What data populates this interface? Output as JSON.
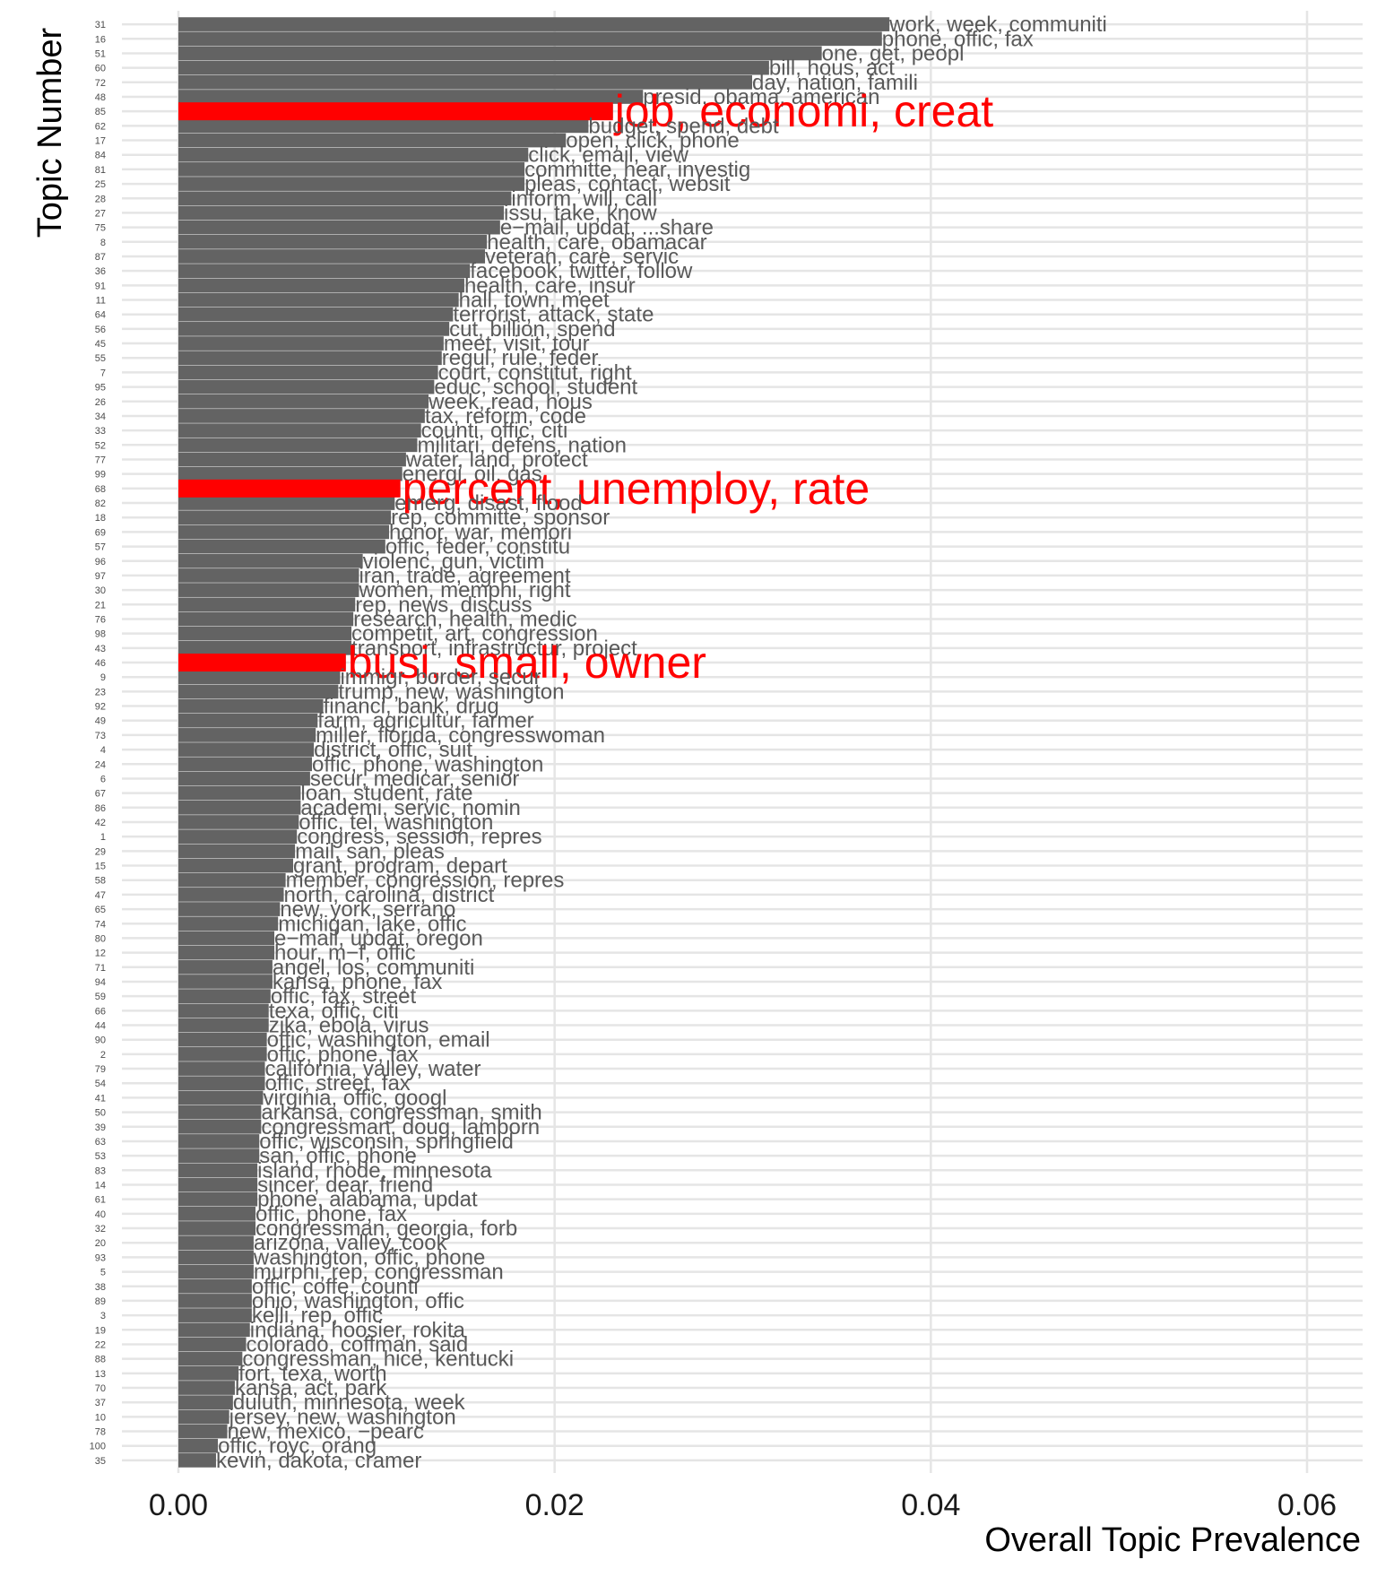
{
  "chart_data": {
    "type": "bar",
    "orientation": "horizontal",
    "title": "",
    "xlabel": "Overall Topic Prevalence",
    "ylabel": "Topic Number",
    "xlim": [
      0,
      0.063
    ],
    "xticks": [
      0.0,
      0.02,
      0.04,
      0.06
    ],
    "xtick_labels": [
      "0.00",
      "0.02",
      "0.04",
      "0.06"
    ],
    "grid": true,
    "colors": {
      "bar": "#636363",
      "highlight": "#ff0000",
      "label": "#595959",
      "grid": "#e5e5e5"
    },
    "topics": [
      {
        "topic": "31",
        "value": 0.0378,
        "label": "work, week, communiti"
      },
      {
        "topic": "16",
        "value": 0.0374,
        "label": "phone, offic, fax"
      },
      {
        "topic": "51",
        "value": 0.0342,
        "label": "one, get, peopl"
      },
      {
        "topic": "60",
        "value": 0.0314,
        "label": "bill, hous, act"
      },
      {
        "topic": "72",
        "value": 0.0305,
        "label": "day, nation, famili"
      },
      {
        "topic": "48",
        "value": 0.0247,
        "label": "presid, obama, american"
      },
      {
        "topic": "85",
        "value": 0.0231,
        "label": "job, economi, creat",
        "highlight": true
      },
      {
        "topic": "62",
        "value": 0.0218,
        "label": "budget, spend, debt"
      },
      {
        "topic": "17",
        "value": 0.0206,
        "label": "open, click, phone"
      },
      {
        "topic": "84",
        "value": 0.0186,
        "label": "click, email, view"
      },
      {
        "topic": "81",
        "value": 0.0184,
        "label": "committe, hear, investig"
      },
      {
        "topic": "25",
        "value": 0.0184,
        "label": "pleas, contact, websit"
      },
      {
        "topic": "28",
        "value": 0.0177,
        "label": "inform, will, call"
      },
      {
        "topic": "27",
        "value": 0.0173,
        "label": "issu, take, know"
      },
      {
        "topic": "75",
        "value": 0.0171,
        "label": "e−mail, updat, ...share"
      },
      {
        "topic": "8",
        "value": 0.0164,
        "label": "health, care, obamacar"
      },
      {
        "topic": "87",
        "value": 0.0163,
        "label": "veteran, care, servic"
      },
      {
        "topic": "36",
        "value": 0.0155,
        "label": "facebook, twitter, follow"
      },
      {
        "topic": "91",
        "value": 0.0152,
        "label": "health, care, insur"
      },
      {
        "topic": "11",
        "value": 0.0149,
        "label": "hall, town, meet"
      },
      {
        "topic": "64",
        "value": 0.0146,
        "label": "terrorist, attack, state"
      },
      {
        "topic": "56",
        "value": 0.0144,
        "label": "cut, billion, spend"
      },
      {
        "topic": "45",
        "value": 0.0141,
        "label": "meet, visit, tour"
      },
      {
        "topic": "55",
        "value": 0.014,
        "label": "regul, rule, feder"
      },
      {
        "topic": "7",
        "value": 0.0138,
        "label": "court, constitut, right"
      },
      {
        "topic": "95",
        "value": 0.0136,
        "label": "educ, school, student"
      },
      {
        "topic": "26",
        "value": 0.0133,
        "label": "week, read, hous"
      },
      {
        "topic": "34",
        "value": 0.0131,
        "label": "tax, reform, code"
      },
      {
        "topic": "33",
        "value": 0.0129,
        "label": "counti, offic, citi"
      },
      {
        "topic": "52",
        "value": 0.0127,
        "label": "militari, defens, nation"
      },
      {
        "topic": "77",
        "value": 0.0121,
        "label": "water, land, protect"
      },
      {
        "topic": "99",
        "value": 0.0119,
        "label": "energi, oil, gas"
      },
      {
        "topic": "68",
        "value": 0.0118,
        "label": "percent, unemploy, rate",
        "highlight": true
      },
      {
        "topic": "82",
        "value": 0.0115,
        "label": "emerg, disast, flood"
      },
      {
        "topic": "18",
        "value": 0.0113,
        "label": "rep, committe, sponsor"
      },
      {
        "topic": "69",
        "value": 0.0112,
        "label": "honor, war, memori"
      },
      {
        "topic": "57",
        "value": 0.011,
        "label": "offic, feder, constitu"
      },
      {
        "topic": "96",
        "value": 0.0098,
        "label": "violenc, gun, victim"
      },
      {
        "topic": "97",
        "value": 0.0096,
        "label": "iran, trade, agreement"
      },
      {
        "topic": "30",
        "value": 0.0096,
        "label": "women, memphi, right"
      },
      {
        "topic": "21",
        "value": 0.0094,
        "label": "rep, news, discuss"
      },
      {
        "topic": "76",
        "value": 0.0093,
        "label": "research, health, medic"
      },
      {
        "topic": "98",
        "value": 0.0092,
        "label": "competit, art, congression"
      },
      {
        "topic": "43",
        "value": 0.0092,
        "label": "transport, infrastructur, project"
      },
      {
        "topic": "46",
        "value": 0.0089,
        "label": "busi, small, owner",
        "highlight": true
      },
      {
        "topic": "9",
        "value": 0.0086,
        "label": "immigr, border, secur"
      },
      {
        "topic": "23",
        "value": 0.0085,
        "label": "trump, new, washington"
      },
      {
        "topic": "92",
        "value": 0.0077,
        "label": "financi, bank, drug"
      },
      {
        "topic": "49",
        "value": 0.0074,
        "label": "farm, agricultur, farmer"
      },
      {
        "topic": "73",
        "value": 0.0073,
        "label": "miller, florida, congresswoman"
      },
      {
        "topic": "4",
        "value": 0.0072,
        "label": "district, offic, suit"
      },
      {
        "topic": "24",
        "value": 0.0071,
        "label": "offic, phone, washington"
      },
      {
        "topic": "6",
        "value": 0.007,
        "label": "secur, medicar, senior"
      },
      {
        "topic": "67",
        "value": 0.0065,
        "label": "loan, student, rate"
      },
      {
        "topic": "86",
        "value": 0.0065,
        "label": "academi, servic, nomin"
      },
      {
        "topic": "42",
        "value": 0.0064,
        "label": "offic, tel, washington"
      },
      {
        "topic": "1",
        "value": 0.0063,
        "label": "congress, session, repres"
      },
      {
        "topic": "29",
        "value": 0.0062,
        "label": "mail, san, pleas"
      },
      {
        "topic": "15",
        "value": 0.0061,
        "label": "grant, program, depart"
      },
      {
        "topic": "58",
        "value": 0.0057,
        "label": "member, congression, repres"
      },
      {
        "topic": "47",
        "value": 0.0056,
        "label": "north, carolina, district"
      },
      {
        "topic": "65",
        "value": 0.0054,
        "label": "new, york, serrano"
      },
      {
        "topic": "74",
        "value": 0.0053,
        "label": "michigan, lake, offic"
      },
      {
        "topic": "80",
        "value": 0.0051,
        "label": "e−mail, updat, oregon"
      },
      {
        "topic": "12",
        "value": 0.0051,
        "label": "hour, m−f, offic"
      },
      {
        "topic": "71",
        "value": 0.005,
        "label": "angel, los, communiti"
      },
      {
        "topic": "94",
        "value": 0.005,
        "label": "kansa, phone, fax"
      },
      {
        "topic": "59",
        "value": 0.0049,
        "label": "offic, fax, street"
      },
      {
        "topic": "66",
        "value": 0.0048,
        "label": "texa, offic, citi"
      },
      {
        "topic": "44",
        "value": 0.0048,
        "label": "zika, ebola, virus"
      },
      {
        "topic": "90",
        "value": 0.0047,
        "label": "offic, washington, email"
      },
      {
        "topic": "2",
        "value": 0.0047,
        "label": "offic, phone, fax"
      },
      {
        "topic": "79",
        "value": 0.0046,
        "label": "california, valley, water"
      },
      {
        "topic": "54",
        "value": 0.0046,
        "label": "offic, street, fax"
      },
      {
        "topic": "41",
        "value": 0.0045,
        "label": "virginia, offic, googl"
      },
      {
        "topic": "50",
        "value": 0.0044,
        "label": "arkansa, congressman, smith"
      },
      {
        "topic": "39",
        "value": 0.0044,
        "label": "congressman, doug, lamborn"
      },
      {
        "topic": "63",
        "value": 0.0043,
        "label": "offic, wisconsin, springfield"
      },
      {
        "topic": "53",
        "value": 0.0043,
        "label": "san, offic, phone"
      },
      {
        "topic": "83",
        "value": 0.0042,
        "label": "island, rhode, minnesota"
      },
      {
        "topic": "14",
        "value": 0.0042,
        "label": "sincer, dear, friend"
      },
      {
        "topic": "61",
        "value": 0.0042,
        "label": "phone, alabama, updat"
      },
      {
        "topic": "40",
        "value": 0.0041,
        "label": "offic, phone, fax"
      },
      {
        "topic": "32",
        "value": 0.0041,
        "label": "congressman, georgia, forb"
      },
      {
        "topic": "20",
        "value": 0.004,
        "label": "arizona, valley, cook"
      },
      {
        "topic": "93",
        "value": 0.004,
        "label": "washington, offic, phone"
      },
      {
        "topic": "5",
        "value": 0.004,
        "label": "murphi, rep, congressman"
      },
      {
        "topic": "38",
        "value": 0.0039,
        "label": "offic, coffe, counti"
      },
      {
        "topic": "89",
        "value": 0.0039,
        "label": "ohio, washington, offic"
      },
      {
        "topic": "3",
        "value": 0.0039,
        "label": "kelli, rep, offic"
      },
      {
        "topic": "19",
        "value": 0.0038,
        "label": "indiana, hoosier, rokita"
      },
      {
        "topic": "22",
        "value": 0.0036,
        "label": "colorado, coffman, said"
      },
      {
        "topic": "88",
        "value": 0.0034,
        "label": "congressman, hice, kentucki"
      },
      {
        "topic": "13",
        "value": 0.0032,
        "label": "fort, texa, worth"
      },
      {
        "topic": "70",
        "value": 0.003,
        "label": "kansa, act, park"
      },
      {
        "topic": "37",
        "value": 0.0029,
        "label": "duluth, minnesota, week"
      },
      {
        "topic": "10",
        "value": 0.0027,
        "label": "jersey, new, washington"
      },
      {
        "topic": "78",
        "value": 0.0026,
        "label": "new, mexico, −pearc"
      },
      {
        "topic": "100",
        "value": 0.0021,
        "label": "offic, royc, orang"
      },
      {
        "topic": "35",
        "value": 0.002,
        "label": "kevin, dakota, cramer"
      }
    ]
  }
}
